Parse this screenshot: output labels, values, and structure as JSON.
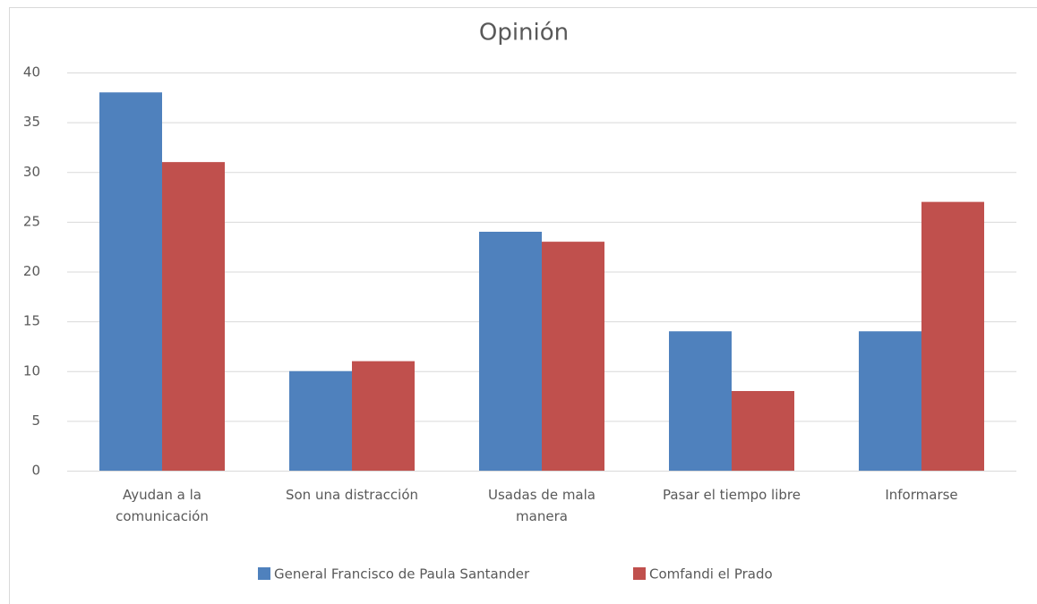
{
  "chart_data": {
    "type": "bar",
    "title": "Opinión",
    "categories": [
      "Ayudan a la comunicación",
      "Son una distracción",
      "Usadas de mala manera",
      "Pasar el tiempo libre",
      "Informarse"
    ],
    "series": [
      {
        "name": "General Francisco de Paula Santander",
        "color": "#4f81bd",
        "values": [
          38,
          10,
          24,
          14,
          14
        ]
      },
      {
        "name": "Comfandi el Prado",
        "color": "#c0504d",
        "values": [
          31,
          11,
          23,
          8,
          27
        ]
      }
    ],
    "ylim": [
      0,
      40
    ],
    "yticks": [
      0,
      5,
      10,
      15,
      20,
      25,
      30,
      35,
      40
    ],
    "grid": true,
    "legend": "bottom"
  }
}
